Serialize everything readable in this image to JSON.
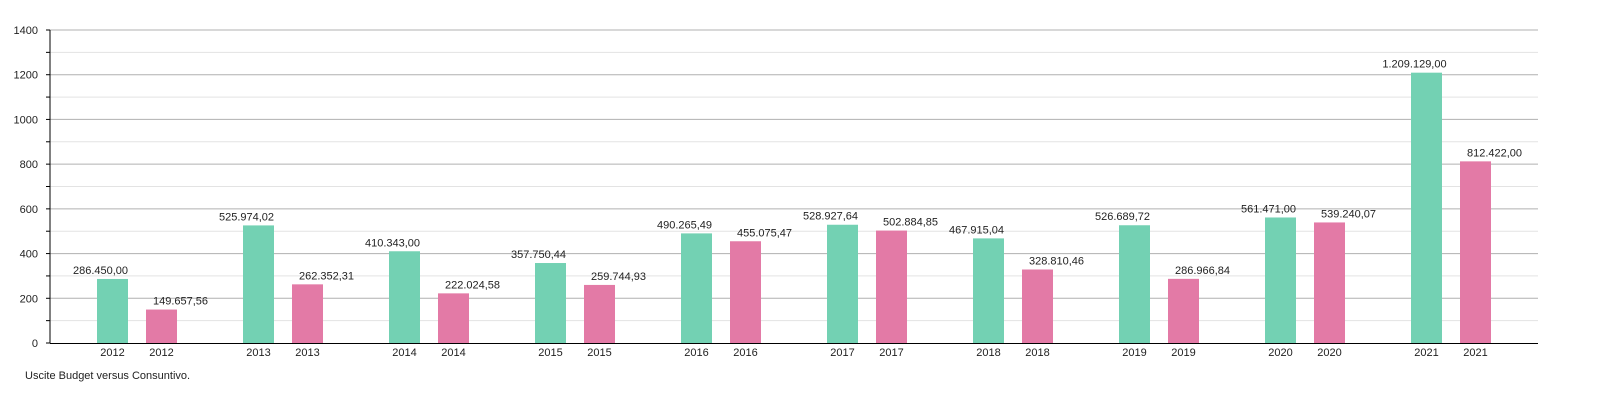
{
  "chart_data": {
    "type": "bar",
    "title": "",
    "xlabel": "",
    "ylabel": "",
    "ylim": [
      0,
      1400
    ],
    "yticks": [
      "0",
      "200",
      "400",
      "600",
      "800",
      "1000",
      "1200",
      "1400"
    ],
    "grid": true,
    "legend": "none",
    "categories": [
      "2012",
      "2013",
      "2014",
      "2015",
      "2016",
      "2017",
      "2018",
      "2019",
      "2020",
      "2021"
    ],
    "series": [
      {
        "color": "#73d1b3",
        "values": [
          286.45,
          525.97402,
          410.343,
          357.75044,
          490.26549,
          528.92764,
          467.91504,
          526.68972,
          561.471,
          1209.129
        ],
        "labels": [
          "286.450,00",
          "525.974,02",
          "410.343,00",
          "357.750,44",
          "490.265,49",
          "528.927,64",
          "467.915,04",
          "526.689,72",
          "561.471,00",
          "1.209.129,00"
        ]
      },
      {
        "color": "#e37aa6",
        "values": [
          149.65756,
          262.35231,
          222.02458,
          259.74493,
          455.07547,
          502.88485,
          328.81046,
          286.96684,
          539.24007,
          812.422
        ],
        "labels": [
          "149.657,56",
          "262.352,31",
          "222.024,58",
          "259.744,93",
          "455.075,47",
          "502.884,85",
          "328.810,46",
          "286.966,84",
          "539.240,07",
          "812.422,00"
        ]
      }
    ]
  },
  "caption": "Uscite Budget versus Consuntivo."
}
